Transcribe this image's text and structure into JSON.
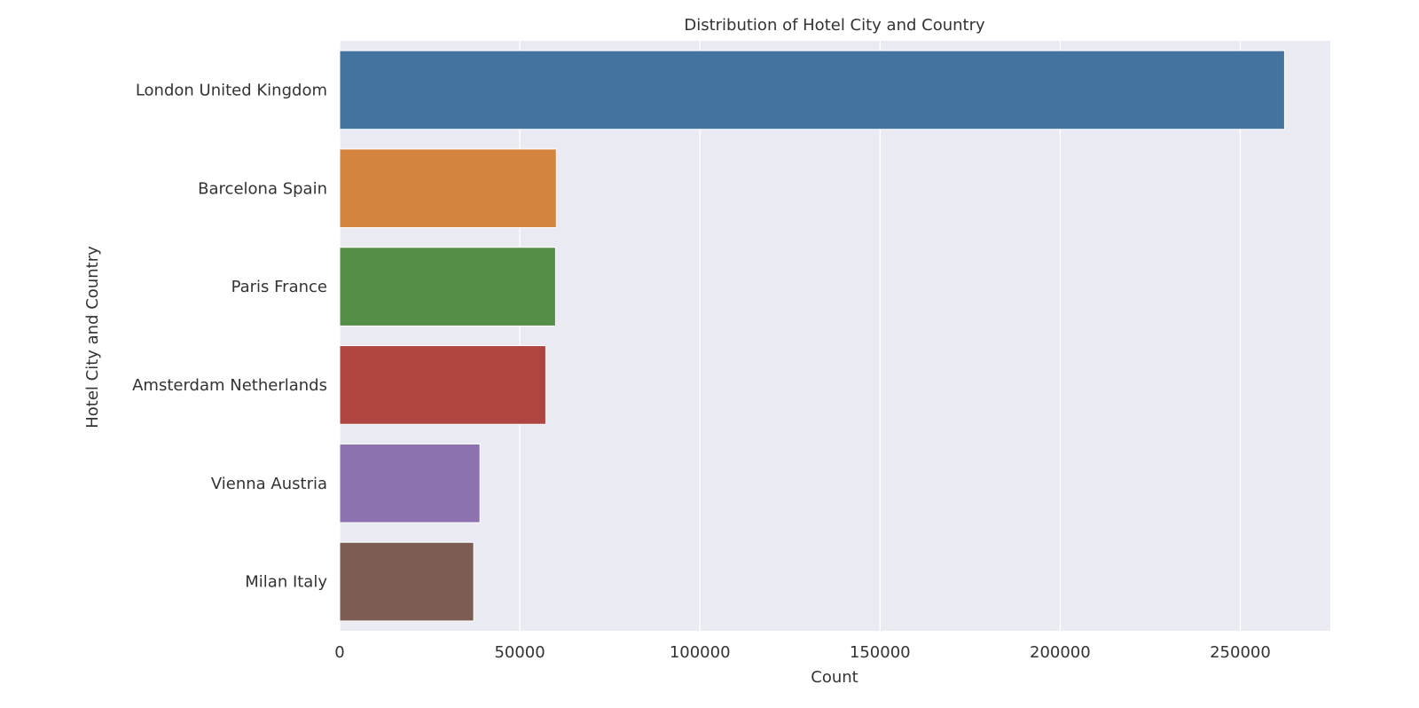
{
  "chart_data": {
    "type": "bar",
    "orientation": "horizontal",
    "title": "Distribution of Hotel City and Country",
    "xlabel": "Count",
    "ylabel": "Hotel City and Country",
    "categories": [
      "London United Kingdom",
      "Barcelona Spain",
      "Paris France",
      "Amsterdam Netherlands",
      "Vienna Austria",
      "Milan Italy"
    ],
    "values": [
      262301,
      60149,
      59928,
      57214,
      38939,
      37207
    ],
    "colors": [
      "#4473a0",
      "#d5843f",
      "#538f46",
      "#af4541",
      "#8c72ae",
      "#7d5c53"
    ],
    "xlim": [
      0,
      275000
    ],
    "xticks": [
      0,
      50000,
      100000,
      150000,
      200000,
      250000
    ],
    "xtick_labels": [
      "0",
      "50000",
      "100000",
      "150000",
      "200000",
      "250000"
    ],
    "grid": true,
    "background": "#eaeaf2"
  }
}
